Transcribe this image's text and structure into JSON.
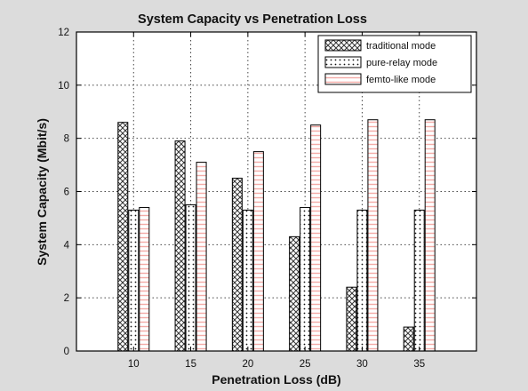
{
  "chart_data": {
    "type": "bar",
    "title": "System Capacity vs Penetration Loss",
    "xlabel": "Penetration Loss (dB)",
    "ylabel": "System Capacity (Mbit/s)",
    "categories": [
      "10",
      "15",
      "20",
      "25",
      "30",
      "35"
    ],
    "ylim": [
      0,
      12
    ],
    "yticks": [
      "0",
      "2",
      "4",
      "6",
      "8",
      "10",
      "12"
    ],
    "grid": true,
    "legend_position": "top-right",
    "series": [
      {
        "name": "traditional mode",
        "pattern": "crosshatch",
        "values": [
          8.6,
          7.9,
          6.5,
          4.3,
          2.4,
          0.9
        ]
      },
      {
        "name": "pure-relay mode",
        "pattern": "dots",
        "values": [
          5.3,
          5.5,
          5.3,
          5.4,
          5.3,
          5.3
        ]
      },
      {
        "name": "femto-like mode",
        "pattern": "stripes",
        "values": [
          5.4,
          7.1,
          7.5,
          8.5,
          8.7,
          8.7
        ]
      }
    ],
    "colors": {
      "background": "#dcdcdc",
      "plot": "#ffffff",
      "ink": "#000000",
      "stripe": "#f4aaa6"
    }
  }
}
